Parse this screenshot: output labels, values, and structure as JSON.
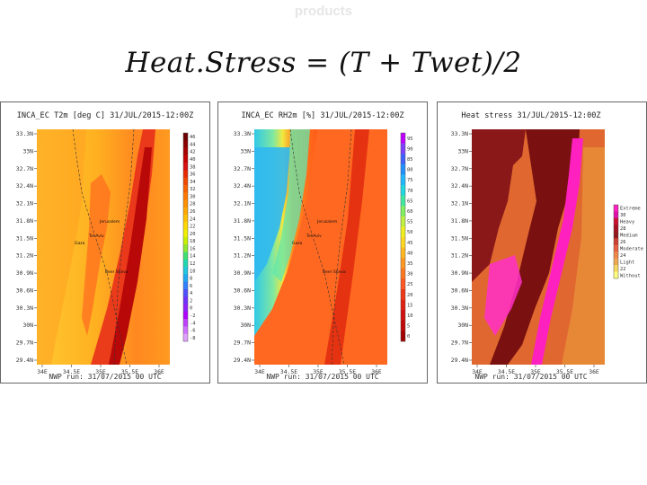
{
  "slide": {
    "title": "products",
    "formula": "Heat.Stress = (T + Twet)/2"
  },
  "panels": [
    {
      "title": "INCA_EC T2m [deg C] 31/JUL/2015-12:00Z",
      "footer": "NWP run: 31/07/2015 00 UTC",
      "lat_labels": [
        "33.3N",
        "33N",
        "32.7N",
        "32.4N",
        "32.1N",
        "31.8N",
        "31.5N",
        "31.2N",
        "30.9N",
        "30.6N",
        "30.3N",
        "30N",
        "29.7N",
        "29.4N"
      ],
      "lon_labels": [
        "34E",
        "34.5E",
        "35E",
        "35.5E",
        "36E"
      ],
      "legend_labels": [
        "46",
        "44",
        "42",
        "40",
        "38",
        "36",
        "34",
        "32",
        "30",
        "28",
        "26",
        "24",
        "22",
        "20",
        "18",
        "16",
        "14",
        "12",
        "10",
        "8",
        "6",
        "4",
        "2",
        "0",
        "-2",
        "-4",
        "-6",
        "-8"
      ],
      "legend_colors": [
        "#6b0000",
        "#8a0000",
        "#a80000",
        "#c40000",
        "#d81010",
        "#e82a00",
        "#f04800",
        "#f86000",
        "#ff7800",
        "#ff9000",
        "#ffa800",
        "#ffc000",
        "#ffd800",
        "#f0f000",
        "#c8f000",
        "#90e830",
        "#40e070",
        "#20d8b0",
        "#20c8e0",
        "#20a8f0",
        "#3080ff",
        "#5050ff",
        "#7030ff",
        "#9020ff",
        "#b000ff",
        "#c040ff",
        "#d070ff",
        "#e0a0ff"
      ],
      "cities": [
        "Tel Aviv",
        "Jerusalem",
        "Beer Sheva",
        "Gaza"
      ]
    },
    {
      "title": "INCA_EC RH2m [%] 31/JUL/2015-12:00Z",
      "footer": "NWP run: 31/07/2015 00 UTC",
      "lat_labels": [
        "33.3N",
        "33N",
        "32.7N",
        "32.4N",
        "32.1N",
        "31.8N",
        "31.5N",
        "31.2N",
        "30.9N",
        "30.6N",
        "30.3N",
        "30N",
        "29.7N",
        "29.4N"
      ],
      "lon_labels": [
        "34E",
        "34.5E",
        "35E",
        "35.5E",
        "36E"
      ],
      "legend_labels": [
        "95",
        "90",
        "85",
        "80",
        "75",
        "70",
        "65",
        "60",
        "55",
        "50",
        "45",
        "40",
        "35",
        "30",
        "25",
        "20",
        "15",
        "10",
        "5",
        "0"
      ],
      "legend_colors": [
        "#c000ff",
        "#8040ff",
        "#4060ff",
        "#2090ff",
        "#20b8ff",
        "#20d8e0",
        "#40e8a0",
        "#80f060",
        "#c0f040",
        "#f0f020",
        "#ffd820",
        "#ffb820",
        "#ff9820",
        "#ff7820",
        "#ff5820",
        "#f03818",
        "#e02010",
        "#d01010",
        "#c00808",
        "#a00000"
      ],
      "cities": [
        "Tel Aviv",
        "Jerusalem",
        "Beer Sheva",
        "Gaza"
      ]
    },
    {
      "title": "Heat stress 31/JUL/2015-12:00Z",
      "footer": "NWP run: 31/07/2015 00 UTC",
      "lat_labels": [
        "33.3N",
        "33N",
        "32.7N",
        "32.4N",
        "32.1N",
        "31.8N",
        "31.5N",
        "31.2N",
        "30.9N",
        "30.6N",
        "30.3N",
        "30N",
        "29.7N",
        "29.4N"
      ],
      "lon_labels": [
        "34E",
        "34.5E",
        "35E",
        "35.5E",
        "36E"
      ],
      "legend_labels": [
        "Extreme",
        "30",
        "Heavy",
        "28",
        "Medium",
        "26",
        "Moderate",
        "24",
        "Light",
        "22",
        "Without"
      ],
      "legend_colors": [
        "#ff20c0",
        "#e010a8",
        "#c81030",
        "#a81020",
        "#901818",
        "#d04030",
        "#e86040",
        "#f08848",
        "#f0a850",
        "#f8d860",
        "#ffff80"
      ]
    }
  ]
}
